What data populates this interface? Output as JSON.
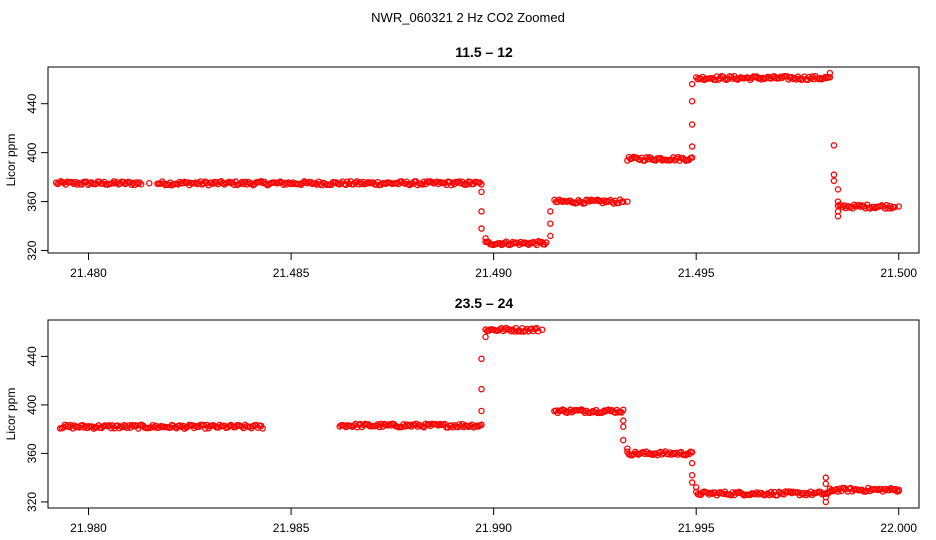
{
  "title": "NWR_060321  2 Hz CO2 Zoomed",
  "point_color": "#ff0000",
  "chart_data": [
    {
      "type": "scatter",
      "title": "11.5 – 12",
      "xlabel": "",
      "ylabel": "Licor ppm",
      "xlim": [
        21.479,
        21.5005
      ],
      "ylim": [
        318,
        470
      ],
      "xticks": [
        21.48,
        21.485,
        21.49,
        21.495,
        21.5
      ],
      "xtick_labels": [
        "21.480",
        "21.485",
        "21.490",
        "21.495",
        "21.500"
      ],
      "yticks": [
        320,
        360,
        400,
        440
      ],
      "ytick_labels": [
        "320",
        "360",
        "400",
        "440"
      ],
      "segments": [
        {
          "x0": 21.4792,
          "x1": 21.4813,
          "y": 375
        },
        {
          "x0": 21.4817,
          "x1": 21.4897,
          "y": 375
        },
        {
          "x0": 21.4898,
          "x1": 21.4913,
          "y": 326
        },
        {
          "x0": 21.4915,
          "x1": 21.4932,
          "y": 360
        },
        {
          "x0": 21.4933,
          "x1": 21.4949,
          "y": 395
        },
        {
          "x0": 21.495,
          "x1": 21.4983,
          "y": 461
        },
        {
          "x0": 21.4985,
          "x1": 21.4999,
          "y": 356
        }
      ],
      "points": [
        {
          "x": 21.4815,
          "y": 375
        },
        {
          "x": 21.4897,
          "y": 368
        },
        {
          "x": 21.4897,
          "y": 352
        },
        {
          "x": 21.4897,
          "y": 338
        },
        {
          "x": 21.4898,
          "y": 330
        },
        {
          "x": 21.4914,
          "y": 332
        },
        {
          "x": 21.4914,
          "y": 342
        },
        {
          "x": 21.4914,
          "y": 352
        },
        {
          "x": 21.4933,
          "y": 360
        },
        {
          "x": 21.4949,
          "y": 405
        },
        {
          "x": 21.4949,
          "y": 423
        },
        {
          "x": 21.4949,
          "y": 442
        },
        {
          "x": 21.4949,
          "y": 456
        },
        {
          "x": 21.4983,
          "y": 465
        },
        {
          "x": 21.4984,
          "y": 406
        },
        {
          "x": 21.4984,
          "y": 382
        },
        {
          "x": 21.4984,
          "y": 377
        },
        {
          "x": 21.4985,
          "y": 370
        },
        {
          "x": 21.4985,
          "y": 360
        },
        {
          "x": 21.4985,
          "y": 352
        },
        {
          "x": 21.4985,
          "y": 348
        },
        {
          "x": 21.5,
          "y": 356
        }
      ]
    },
    {
      "type": "scatter",
      "title": "23.5 – 24",
      "xlabel": "",
      "ylabel": "Licor ppm",
      "xlim": [
        21.979,
        22.0005
      ],
      "ylim": [
        315,
        470
      ],
      "xticks": [
        21.98,
        21.985,
        21.99,
        21.995,
        22.0
      ],
      "xtick_labels": [
        "21.980",
        "21.985",
        "21.990",
        "21.995",
        "22.000"
      ],
      "yticks": [
        320,
        360,
        400,
        440
      ],
      "ytick_labels": [
        "320",
        "360",
        "400",
        "440"
      ],
      "segments": [
        {
          "x0": 21.9793,
          "x1": 21.9843,
          "y": 382
        },
        {
          "x0": 21.9862,
          "x1": 21.9897,
          "y": 383
        },
        {
          "x0": 21.9898,
          "x1": 21.9911,
          "y": 462
        },
        {
          "x0": 21.9915,
          "x1": 21.9932,
          "y": 395
        },
        {
          "x0": 21.9933,
          "x1": 21.9949,
          "y": 360
        },
        {
          "x0": 21.995,
          "x1": 21.9983,
          "y": 327
        },
        {
          "x0": 21.9983,
          "x1": 22.0,
          "y": 330
        }
      ],
      "points": [
        {
          "x": 21.9897,
          "y": 395
        },
        {
          "x": 21.9897,
          "y": 413
        },
        {
          "x": 21.9897,
          "y": 438
        },
        {
          "x": 21.9898,
          "y": 456
        },
        {
          "x": 21.9912,
          "y": 462
        },
        {
          "x": 21.9932,
          "y": 387
        },
        {
          "x": 21.9932,
          "y": 382
        },
        {
          "x": 21.9932,
          "y": 371
        },
        {
          "x": 21.9933,
          "y": 364
        },
        {
          "x": 21.9949,
          "y": 352
        },
        {
          "x": 21.9949,
          "y": 342
        },
        {
          "x": 21.9949,
          "y": 336
        },
        {
          "x": 21.995,
          "y": 332
        },
        {
          "x": 21.9982,
          "y": 340
        },
        {
          "x": 21.9982,
          "y": 335
        },
        {
          "x": 21.9982,
          "y": 324
        },
        {
          "x": 21.9982,
          "y": 320
        },
        {
          "x": 22.0,
          "y": 330
        }
      ]
    }
  ]
}
